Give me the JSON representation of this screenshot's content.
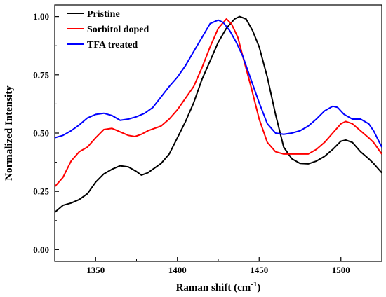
{
  "chart_data": {
    "type": "line",
    "xlabel": "Raman shift (cm",
    "xlabel_sup": "-1",
    "xlabel_close": ")",
    "ylabel": "Normalized Intensity",
    "xlim": [
      1325,
      1525
    ],
    "ylim": [
      -0.05,
      1.05
    ],
    "xticks": [
      1350,
      1400,
      1450,
      1500
    ],
    "xtick_labels": [
      "1350",
      "1400",
      "1450",
      "1500"
    ],
    "yticks": [
      0.0,
      0.25,
      0.5,
      0.75,
      1.0
    ],
    "ytick_labels": [
      "0.00",
      "0.25",
      "0.50",
      "0.75",
      "1.00"
    ],
    "legend_position": "top-left",
    "grid": false,
    "series": [
      {
        "name": "Pristine",
        "color": "#000000",
        "points": [
          [
            1325,
            0.16
          ],
          [
            1330,
            0.19
          ],
          [
            1335,
            0.2
          ],
          [
            1340,
            0.215
          ],
          [
            1345,
            0.24
          ],
          [
            1350,
            0.29
          ],
          [
            1355,
            0.325
          ],
          [
            1360,
            0.345
          ],
          [
            1365,
            0.36
          ],
          [
            1370,
            0.355
          ],
          [
            1375,
            0.335
          ],
          [
            1378,
            0.32
          ],
          [
            1382,
            0.33
          ],
          [
            1386,
            0.35
          ],
          [
            1390,
            0.37
          ],
          [
            1395,
            0.41
          ],
          [
            1400,
            0.48
          ],
          [
            1405,
            0.55
          ],
          [
            1410,
            0.63
          ],
          [
            1415,
            0.73
          ],
          [
            1420,
            0.81
          ],
          [
            1425,
            0.89
          ],
          [
            1430,
            0.95
          ],
          [
            1435,
            0.99
          ],
          [
            1438,
            1.0
          ],
          [
            1442,
            0.99
          ],
          [
            1446,
            0.94
          ],
          [
            1450,
            0.87
          ],
          [
            1455,
            0.74
          ],
          [
            1460,
            0.58
          ],
          [
            1465,
            0.44
          ],
          [
            1470,
            0.39
          ],
          [
            1475,
            0.37
          ],
          [
            1480,
            0.368
          ],
          [
            1485,
            0.38
          ],
          [
            1490,
            0.4
          ],
          [
            1495,
            0.43
          ],
          [
            1500,
            0.465
          ],
          [
            1503,
            0.47
          ],
          [
            1507,
            0.46
          ],
          [
            1512,
            0.42
          ],
          [
            1517,
            0.39
          ],
          [
            1520,
            0.37
          ],
          [
            1525,
            0.33
          ]
        ]
      },
      {
        "name": "Sorbitol doped",
        "color": "#ff0000",
        "points": [
          [
            1325,
            0.27
          ],
          [
            1330,
            0.31
          ],
          [
            1335,
            0.38
          ],
          [
            1340,
            0.42
          ],
          [
            1345,
            0.44
          ],
          [
            1350,
            0.48
          ],
          [
            1355,
            0.515
          ],
          [
            1360,
            0.52
          ],
          [
            1365,
            0.505
          ],
          [
            1370,
            0.49
          ],
          [
            1374,
            0.485
          ],
          [
            1378,
            0.495
          ],
          [
            1382,
            0.51
          ],
          [
            1386,
            0.52
          ],
          [
            1390,
            0.53
          ],
          [
            1395,
            0.56
          ],
          [
            1400,
            0.6
          ],
          [
            1405,
            0.65
          ],
          [
            1410,
            0.7
          ],
          [
            1415,
            0.78
          ],
          [
            1420,
            0.87
          ],
          [
            1425,
            0.95
          ],
          [
            1430,
            0.99
          ],
          [
            1433,
            0.97
          ],
          [
            1437,
            0.91
          ],
          [
            1440,
            0.83
          ],
          [
            1445,
            0.7
          ],
          [
            1450,
            0.56
          ],
          [
            1455,
            0.46
          ],
          [
            1460,
            0.42
          ],
          [
            1465,
            0.41
          ],
          [
            1470,
            0.41
          ],
          [
            1475,
            0.41
          ],
          [
            1480,
            0.41
          ],
          [
            1485,
            0.43
          ],
          [
            1490,
            0.46
          ],
          [
            1495,
            0.5
          ],
          [
            1500,
            0.54
          ],
          [
            1503,
            0.55
          ],
          [
            1507,
            0.54
          ],
          [
            1512,
            0.51
          ],
          [
            1517,
            0.48
          ],
          [
            1520,
            0.46
          ],
          [
            1525,
            0.41
          ]
        ]
      },
      {
        "name": "TFA treated",
        "color": "#0000ff",
        "points": [
          [
            1325,
            0.48
          ],
          [
            1330,
            0.49
          ],
          [
            1335,
            0.51
          ],
          [
            1340,
            0.535
          ],
          [
            1345,
            0.565
          ],
          [
            1350,
            0.58
          ],
          [
            1355,
            0.585
          ],
          [
            1360,
            0.575
          ],
          [
            1365,
            0.555
          ],
          [
            1370,
            0.56
          ],
          [
            1375,
            0.57
          ],
          [
            1380,
            0.585
          ],
          [
            1385,
            0.61
          ],
          [
            1390,
            0.655
          ],
          [
            1395,
            0.7
          ],
          [
            1400,
            0.74
          ],
          [
            1405,
            0.79
          ],
          [
            1410,
            0.85
          ],
          [
            1415,
            0.91
          ],
          [
            1420,
            0.97
          ],
          [
            1425,
            0.985
          ],
          [
            1428,
            0.975
          ],
          [
            1432,
            0.94
          ],
          [
            1436,
            0.89
          ],
          [
            1440,
            0.83
          ],
          [
            1445,
            0.73
          ],
          [
            1450,
            0.63
          ],
          [
            1455,
            0.54
          ],
          [
            1460,
            0.5
          ],
          [
            1465,
            0.495
          ],
          [
            1470,
            0.5
          ],
          [
            1475,
            0.51
          ],
          [
            1480,
            0.53
          ],
          [
            1485,
            0.56
          ],
          [
            1490,
            0.595
          ],
          [
            1495,
            0.615
          ],
          [
            1498,
            0.61
          ],
          [
            1502,
            0.58
          ],
          [
            1507,
            0.56
          ],
          [
            1512,
            0.56
          ],
          [
            1517,
            0.54
          ],
          [
            1520,
            0.51
          ],
          [
            1525,
            0.44
          ]
        ]
      }
    ]
  }
}
